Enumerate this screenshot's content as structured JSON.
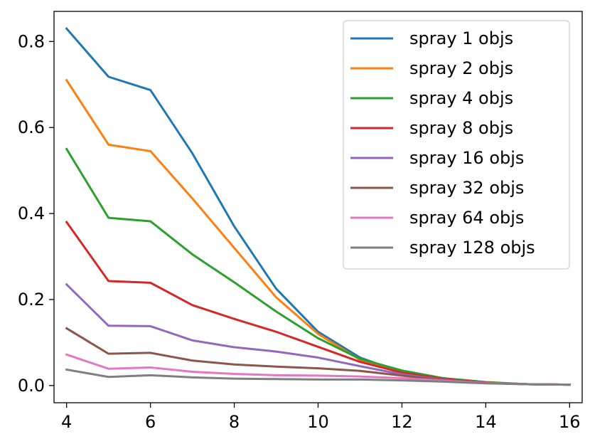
{
  "chart_data": {
    "type": "line",
    "title": "",
    "xlabel": "",
    "ylabel": "",
    "xlim": [
      3.7,
      16.3
    ],
    "ylim": [
      -0.04,
      0.87
    ],
    "x": [
      4,
      5,
      6,
      7,
      8,
      9,
      10,
      11,
      12,
      13,
      14,
      15,
      16
    ],
    "xticks": [
      4,
      6,
      8,
      10,
      12,
      14,
      16
    ],
    "yticks": [
      0.0,
      0.2,
      0.4,
      0.6,
      0.8
    ],
    "ytick_labels": [
      "0.0",
      "0.2",
      "0.4",
      "0.6",
      "0.8"
    ],
    "grid": false,
    "legend_position": "top-right",
    "series": [
      {
        "name": "spray 1 objs",
        "color": "#1f77b4",
        "values": [
          0.83,
          0.718,
          0.687,
          0.54,
          0.37,
          0.225,
          0.125,
          0.065,
          0.03,
          0.015,
          0.007,
          0.003,
          0.002
        ]
      },
      {
        "name": "spray 2 objs",
        "color": "#ff7f0e",
        "values": [
          0.71,
          0.56,
          0.545,
          0.435,
          0.32,
          0.205,
          0.12,
          0.06,
          0.033,
          0.016,
          0.007,
          0.003,
          0.002
        ]
      },
      {
        "name": "spray 4 objs",
        "color": "#2ca02c",
        "values": [
          0.55,
          0.39,
          0.382,
          0.305,
          0.24,
          0.172,
          0.11,
          0.062,
          0.035,
          0.017,
          0.008,
          0.003,
          0.002
        ]
      },
      {
        "name": "spray 8 objs",
        "color": "#d62728",
        "values": [
          0.38,
          0.243,
          0.239,
          0.187,
          0.155,
          0.125,
          0.09,
          0.055,
          0.03,
          0.015,
          0.007,
          0.003,
          0.002
        ]
      },
      {
        "name": "spray 16 objs",
        "color": "#9467bd",
        "values": [
          0.235,
          0.139,
          0.138,
          0.105,
          0.089,
          0.079,
          0.065,
          0.045,
          0.026,
          0.013,
          0.006,
          0.003,
          0.002
        ]
      },
      {
        "name": "spray 32 objs",
        "color": "#8c564b",
        "values": [
          0.133,
          0.074,
          0.076,
          0.058,
          0.049,
          0.044,
          0.04,
          0.034,
          0.023,
          0.012,
          0.006,
          0.003,
          0.002
        ]
      },
      {
        "name": "spray 64 objs",
        "color": "#e377c2",
        "values": [
          0.072,
          0.039,
          0.042,
          0.032,
          0.027,
          0.024,
          0.023,
          0.021,
          0.017,
          0.011,
          0.006,
          0.003,
          0.002
        ]
      },
      {
        "name": "spray 128 objs",
        "color": "#7f7f7f",
        "values": [
          0.037,
          0.02,
          0.024,
          0.019,
          0.016,
          0.015,
          0.014,
          0.014,
          0.012,
          0.009,
          0.005,
          0.003,
          0.002
        ]
      }
    ]
  }
}
